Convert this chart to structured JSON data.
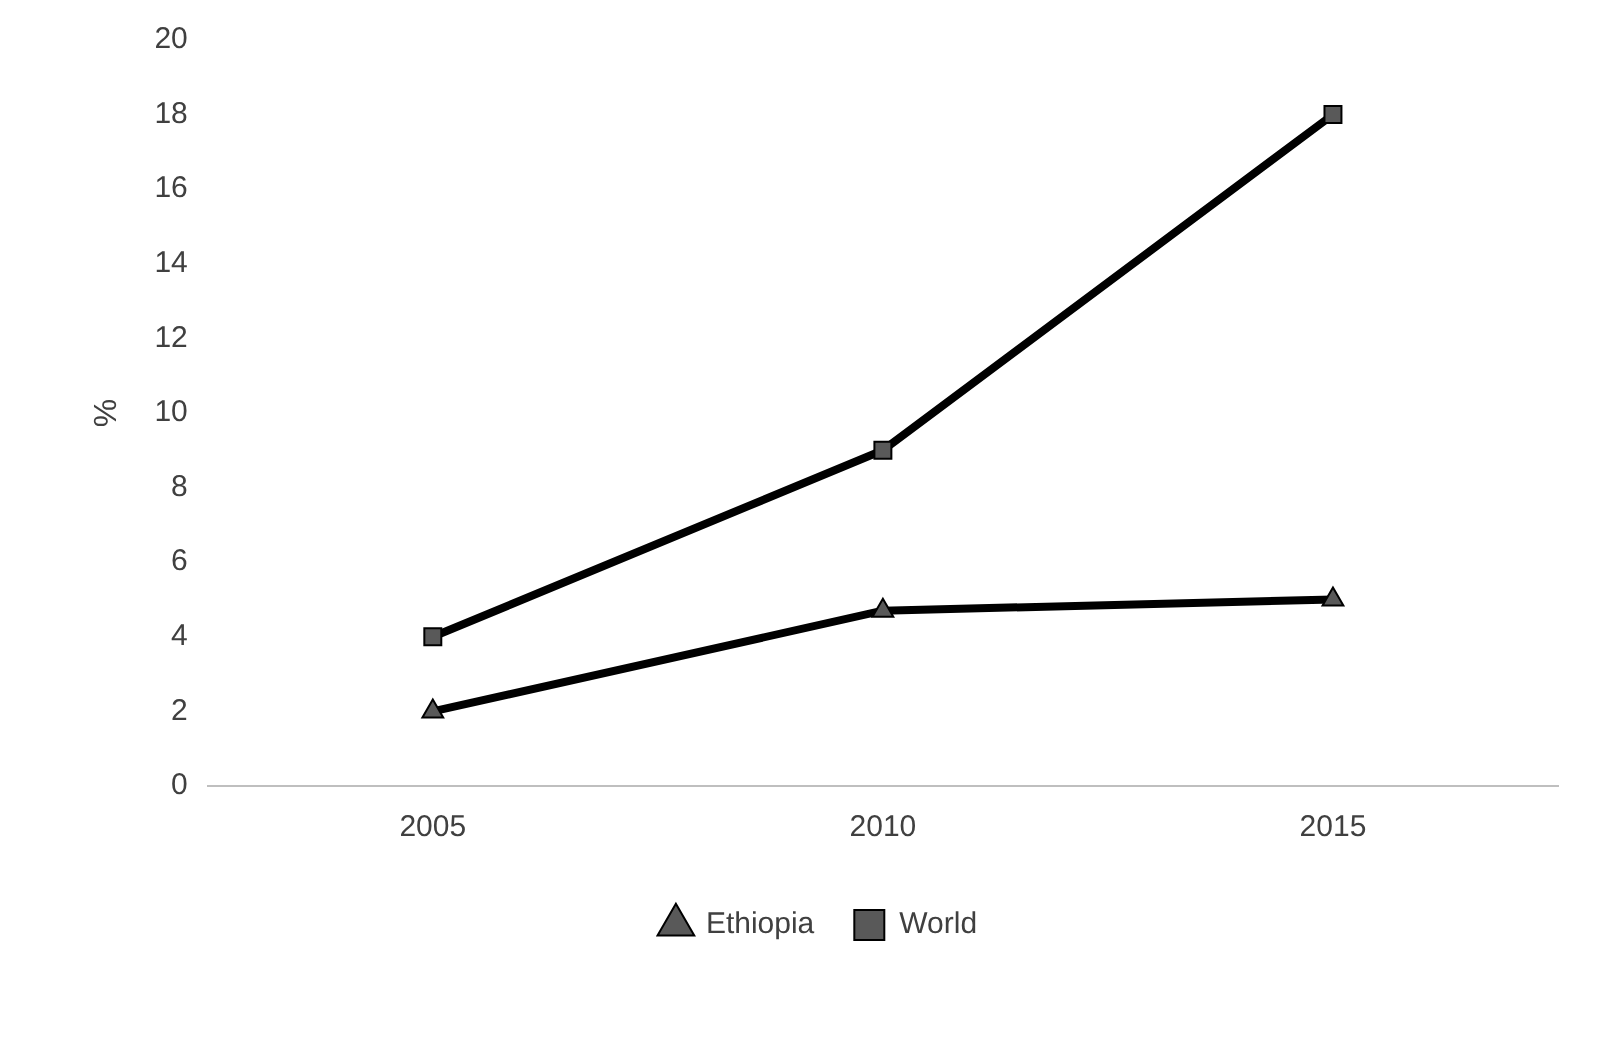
{
  "chart_data": {
    "type": "line",
    "ylabel": "%",
    "categories": [
      "2005",
      "2010",
      "2015"
    ],
    "series": [
      {
        "name": "Ethiopia",
        "color": "#000000",
        "marker": "triangle",
        "values": [
          2,
          4.7,
          5
        ]
      },
      {
        "name": "World",
        "color": "#000000",
        "marker": "square",
        "values": [
          4,
          9,
          18
        ]
      }
    ],
    "ylim": [
      0,
      20
    ],
    "yticks": [
      0,
      2,
      4,
      6,
      8,
      10,
      12,
      14,
      16,
      18,
      20
    ],
    "grid": false,
    "legend": "bottom",
    "line_style": "solid"
  }
}
